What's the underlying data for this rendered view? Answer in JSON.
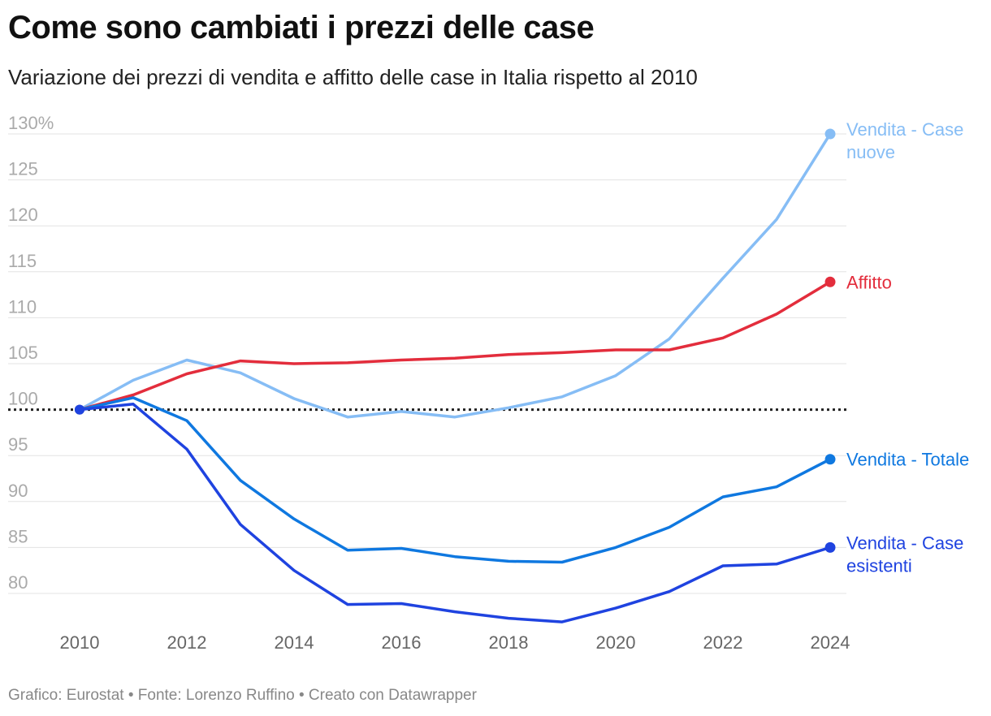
{
  "title": "Come sono cambiati i prezzi delle case",
  "subtitle": "Variazione dei prezzi di vendita e affitto delle case in Italia rispetto al 2010",
  "footer": "Grafico: Eurostat • Fonte: Lorenzo Ruffino • Creato con Datawrapper",
  "chart_data": {
    "type": "line",
    "x": [
      2010,
      2011,
      2012,
      2013,
      2014,
      2015,
      2016,
      2017,
      2018,
      2019,
      2020,
      2021,
      2022,
      2023,
      2024
    ],
    "ylim": [
      76,
      130
    ],
    "xlim": [
      2010,
      2024
    ],
    "yticks": [
      80,
      85,
      90,
      95,
      100,
      105,
      110,
      115,
      120,
      125,
      130
    ],
    "ytick_labels": [
      "80",
      "85",
      "90",
      "95",
      "100",
      "105",
      "110",
      "115",
      "120",
      "125",
      "130%"
    ],
    "xticks": [
      2010,
      2012,
      2014,
      2016,
      2018,
      2020,
      2022,
      2024
    ],
    "xtick_labels": [
      "2010",
      "2012",
      "2014",
      "2016",
      "2018",
      "2020",
      "2022",
      "2024"
    ],
    "reference_line": 100,
    "grid": true,
    "series": [
      {
        "name": "Vendita - Case nuove",
        "label_lines": [
          "Vendita - Case",
          "nuove"
        ],
        "color": "#86bdf5",
        "values": [
          100,
          103.2,
          105.4,
          104,
          101.2,
          99.2,
          99.8,
          99.2,
          100.2,
          101.4,
          103.7,
          107.7,
          114.3,
          120.7,
          130
        ]
      },
      {
        "name": "Affitto",
        "label_lines": [
          "Affitto"
        ],
        "color": "#e32d3c",
        "values": [
          100,
          101.6,
          103.9,
          105.3,
          105,
          105.1,
          105.4,
          105.6,
          106,
          106.2,
          106.5,
          106.5,
          107.8,
          110.4,
          113.9
        ]
      },
      {
        "name": "Vendita - Totale",
        "label_lines": [
          "Vendita - Totale"
        ],
        "color": "#0f78e0",
        "values": [
          100,
          101.3,
          98.8,
          92.3,
          88.1,
          84.7,
          84.9,
          84,
          83.5,
          83.4,
          85,
          87.2,
          90.5,
          91.6,
          94.6
        ]
      },
      {
        "name": "Vendita - Case esistenti",
        "label_lines": [
          "Vendita - Case",
          "esistenti"
        ],
        "color": "#1f43e0",
        "values": [
          100,
          100.6,
          95.7,
          87.5,
          82.5,
          78.8,
          78.9,
          78,
          77.3,
          76.9,
          78.4,
          80.2,
          83,
          83.2,
          85
        ]
      }
    ]
  }
}
